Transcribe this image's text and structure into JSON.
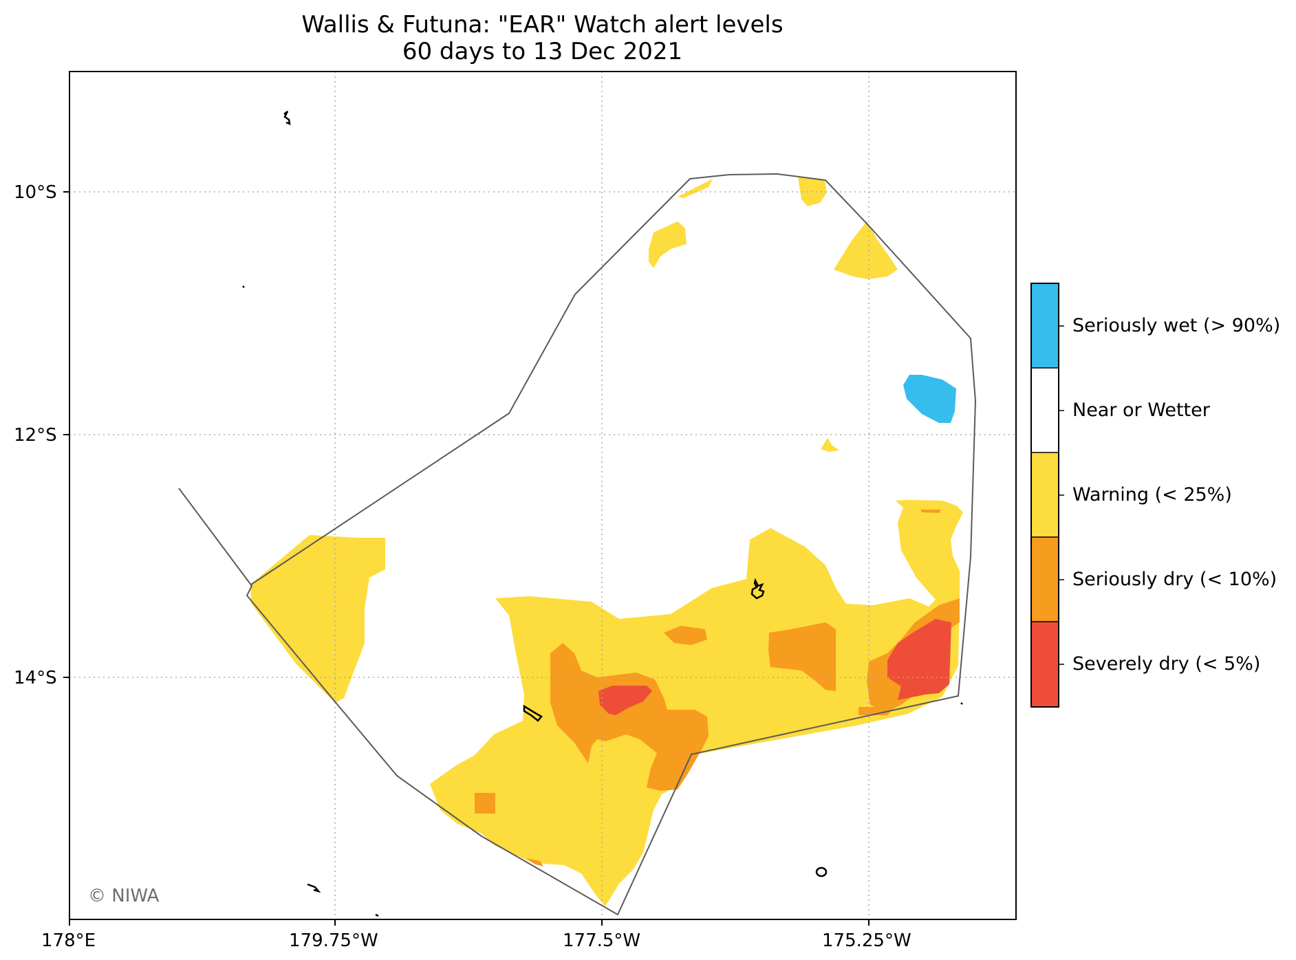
{
  "title": {
    "line1": "Wallis & Futuna: \"EAR\" Watch alert levels",
    "line2": "60 days to 13 Dec 2021"
  },
  "map": {
    "lat_ticks": [
      "10°S",
      "12°S",
      "14°S"
    ],
    "lon_ticks": [
      "178°E",
      "179.75°W",
      "177.5°W",
      "175.25°W"
    ],
    "gridlines": true,
    "credit": "© NIWA"
  },
  "colors": {
    "seriously_wet": "#36bced",
    "near_or_wetter": "#ffffff",
    "warning": "#fddc3d",
    "seriously_dry": "#f69c1f",
    "severely_dry": "#ee4e37",
    "eez_outline": "#5a5a5a",
    "grid": "#aaaaaa"
  },
  "legend": {
    "items": [
      {
        "label": "Seriously wet (> 90%)",
        "color_key": "seriously_wet"
      },
      {
        "label": "Near or Wetter",
        "color_key": "near_or_wetter"
      },
      {
        "label": "Warning (< 25%)",
        "color_key": "warning"
      },
      {
        "label": "Seriously dry (< 10%)",
        "color_key": "seriously_dry"
      },
      {
        "label": "Severely dry (< 5%)",
        "color_key": "severely_dry"
      }
    ]
  }
}
